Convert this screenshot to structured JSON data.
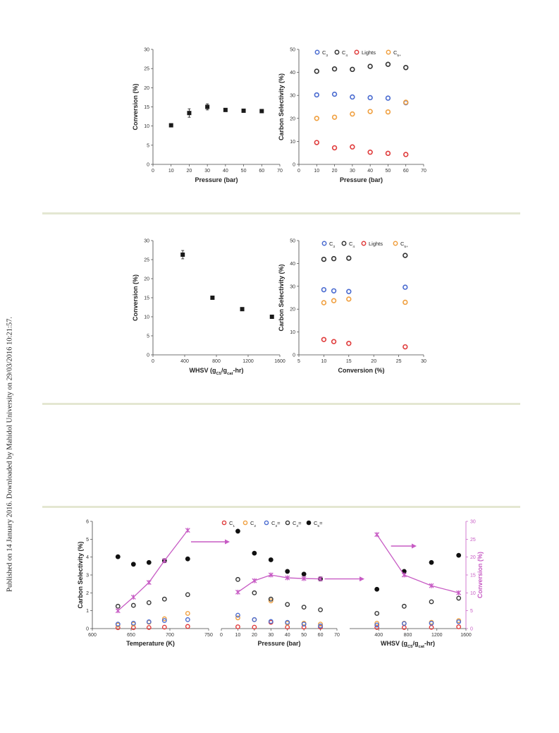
{
  "page": {
    "side_note": "Published on 14 January 2016. Downloaded by Mahidol University on 29/03/2016 10:21:57.",
    "rule_color": "#e4e7d2"
  },
  "colors": {
    "C1": "#e03c3c",
    "C2": "#f0a040",
    "C3": "#4a6bd0",
    "C4": "#333333",
    "Lights": "#e03c3c",
    "C5plus": "#f0a040",
    "C3eq": "#4a6bd0",
    "C4eq": "#333333",
    "C5eq": "#111111",
    "conversion": "#c75bc4",
    "marker": "#1a1a1a"
  },
  "chart_data": [
    {
      "id": "a1",
      "type": "scatter",
      "xlabel": "Pressure (bar)",
      "ylabel": "Conversion (%)",
      "xlim": [
        0,
        70
      ],
      "ylim": [
        0,
        30
      ],
      "xticks": [
        "0",
        "10",
        "20",
        "30",
        "40",
        "50",
        "60",
        "70"
      ],
      "yticks": [
        "0",
        "5",
        "10",
        "15",
        "20",
        "25",
        "30"
      ],
      "series": [
        {
          "x": [
            10,
            20,
            30,
            40,
            50,
            60
          ],
          "y": [
            10.2,
            13.4,
            15.0,
            14.2,
            14.0,
            13.9
          ],
          "err": [
            0,
            1.1,
            0.8,
            0,
            0,
            0
          ]
        }
      ]
    },
    {
      "id": "a2",
      "type": "scatter",
      "xlabel": "Pressure (bar)",
      "ylabel": "Carbon Selectivity (%)",
      "xlim": [
        0,
        70
      ],
      "ylim": [
        0,
        50
      ],
      "xticks": [
        "0",
        "10",
        "20",
        "30",
        "40",
        "50",
        "60",
        "70"
      ],
      "yticks": [
        "0",
        "10",
        "20",
        "30",
        "40",
        "50"
      ],
      "legend": [
        {
          "base": "C",
          "sub": "3",
          "color_key": "C3"
        },
        {
          "base": "C",
          "sub": "4",
          "color_key": "C4"
        },
        {
          "base": "Lights",
          "sub": "",
          "color_key": "Lights"
        },
        {
          "base": "C",
          "sub": "5+",
          "color_key": "C5plus"
        }
      ],
      "series": [
        {
          "key": "C3",
          "x": [
            10,
            20,
            30,
            40,
            50,
            60
          ],
          "y": [
            30.2,
            30.5,
            29.3,
            29.0,
            28.8,
            26.8
          ]
        },
        {
          "key": "C4",
          "x": [
            10,
            20,
            30,
            40,
            50,
            60
          ],
          "y": [
            40.5,
            41.5,
            41.3,
            42.6,
            43.5,
            42.1
          ]
        },
        {
          "key": "Lights",
          "x": [
            10,
            20,
            30,
            40,
            50,
            60
          ],
          "y": [
            9.5,
            7.2,
            7.6,
            5.3,
            4.8,
            4.3
          ]
        },
        {
          "key": "C5plus",
          "x": [
            10,
            20,
            30,
            40,
            50,
            60
          ],
          "y": [
            20.0,
            20.5,
            21.9,
            23.0,
            22.8,
            27.0
          ]
        }
      ]
    },
    {
      "id": "b1",
      "type": "scatter",
      "xlabel_base": "WHSV (g",
      "xlabel_sub1": "C5",
      "xlabel_mid": "/g",
      "xlabel_sub2": "cat",
      "xlabel_end": "-hr)",
      "ylabel": "Conversion (%)",
      "xlim": [
        0,
        1600
      ],
      "ylim": [
        0,
        30
      ],
      "xticks": [
        "0",
        "400",
        "800",
        "1200",
        "1600"
      ],
      "yticks": [
        "0",
        "5",
        "10",
        "15",
        "20",
        "25",
        "30"
      ],
      "series": [
        {
          "x": [
            375,
            750,
            1125,
            1500
          ],
          "y": [
            26.3,
            15.0,
            12.0,
            10.0
          ],
          "err": [
            1.1,
            0,
            0,
            0
          ]
        }
      ]
    },
    {
      "id": "b2",
      "type": "scatter",
      "xlabel": "Conversion (%)",
      "ylabel": "Carbon Selectivity (%)",
      "xlim": [
        5,
        30
      ],
      "ylim": [
        0,
        50
      ],
      "xticks": [
        "5",
        "10",
        "15",
        "20",
        "25",
        "30"
      ],
      "yticks": [
        "0",
        "10",
        "20",
        "30",
        "40",
        "50"
      ],
      "legend": [
        {
          "base": "C",
          "sub": "3",
          "color_key": "C3"
        },
        {
          "base": "C",
          "sub": "4",
          "color_key": "C4"
        },
        {
          "base": "Lights",
          "sub": "",
          "color_key": "Lights"
        },
        {
          "base": "C",
          "sub": "5+",
          "color_key": "C5plus"
        }
      ],
      "series": [
        {
          "key": "C3",
          "x": [
            10,
            12,
            15,
            26.3
          ],
          "y": [
            28.5,
            28.0,
            27.7,
            29.6
          ]
        },
        {
          "key": "C4",
          "x": [
            10,
            12,
            15,
            26.3
          ],
          "y": [
            41.8,
            42.1,
            42.3,
            43.5
          ]
        },
        {
          "key": "Lights",
          "x": [
            10,
            12,
            15,
            26.3
          ],
          "y": [
            6.7,
            5.8,
            5.0,
            3.5
          ]
        },
        {
          "key": "C5plus",
          "x": [
            10,
            12,
            15,
            26.3
          ],
          "y": [
            22.8,
            23.7,
            24.4,
            23.0
          ]
        }
      ]
    },
    {
      "id": "c",
      "type": "scatter",
      "ylabel_left": "Carbon Selectivity (%)",
      "ylabel_right": "Conversion (%)",
      "ylim_left": [
        0,
        6
      ],
      "ylim_right": [
        0,
        30
      ],
      "yticks_left": [
        "0",
        "1",
        "2",
        "3",
        "4",
        "5",
        "6"
      ],
      "yticks_right": [
        "0",
        "5",
        "10",
        "15",
        "20",
        "25",
        "30"
      ],
      "legend": [
        {
          "base": "C",
          "sub": "1",
          "suffix": "",
          "color_key": "C1",
          "filled": false
        },
        {
          "base": "C",
          "sub": "2",
          "suffix": "",
          "color_key": "C2",
          "filled": false
        },
        {
          "base": "C",
          "sub": "3",
          "suffix": "=",
          "color_key": "C3eq",
          "filled": false
        },
        {
          "base": "C",
          "sub": "4",
          "suffix": "=",
          "color_key": "C4eq",
          "filled": false
        },
        {
          "base": "C",
          "sub": "5",
          "suffix": "=",
          "color_key": "C5eq",
          "filled": true
        }
      ],
      "panels": [
        {
          "xlabel": "Temperature (K)",
          "xlim": [
            600,
            750
          ],
          "xticks": [
            "600",
            "650",
            "700",
            "750"
          ],
          "x": [
            633,
            653,
            673,
            693,
            723
          ],
          "series": {
            "C1": [
              0.05,
              0.05,
              0.06,
              0.08,
              0.12
            ],
            "C2": [
              0.2,
              0.25,
              0.35,
              0.55,
              0.85
            ],
            "C3eq": [
              0.25,
              0.3,
              0.38,
              0.45,
              0.5
            ],
            "C4eq": [
              1.25,
              1.3,
              1.45,
              1.65,
              1.9
            ],
            "C5eq": [
              4.02,
              3.6,
              3.7,
              3.8,
              3.9
            ]
          },
          "conversion": [
            5.0,
            8.8,
            12.9,
            19.0,
            27.5
          ]
        },
        {
          "xlabel": "Pressure (bar)",
          "xlim": [
            0,
            70
          ],
          "xticks": [
            "0",
            "10",
            "20",
            "30",
            "40",
            "50",
            "60",
            "70"
          ],
          "x": [
            10,
            20,
            30,
            40,
            50,
            60
          ],
          "series": {
            "C1": [
              0.1,
              0.08,
              0.35,
              0.08,
              0.08,
              0.08
            ],
            "C2": [
              0.6,
              0.5,
              1.55,
              0.3,
              0.3,
              0.25
            ],
            "C3eq": [
              0.75,
              0.5,
              0.4,
              0.35,
              0.25,
              0.15
            ],
            "C4eq": [
              2.75,
              2.0,
              1.65,
              1.35,
              1.2,
              1.05
            ],
            "C5eq": [
              5.45,
              4.22,
              3.85,
              3.2,
              3.05,
              2.78
            ]
          },
          "conversion": [
            10.2,
            13.4,
            15.0,
            14.2,
            14.0,
            13.9
          ]
        },
        {
          "xlabel_base": "WHSV (g",
          "xlabel_sub1": "C5",
          "xlabel_mid": "/g",
          "xlabel_sub2": "cat",
          "xlabel_end": "-hr)",
          "xlim": [
            0,
            1600
          ],
          "xticks": [
            "400",
            "800",
            "1200",
            "1600"
          ],
          "x": [
            375,
            750,
            1125,
            1500
          ],
          "series": {
            "C1": [
              0.06,
              0.06,
              0.07,
              0.1
            ],
            "C2": [
              0.3,
              0.3,
              0.35,
              0.45
            ],
            "C3eq": [
              0.2,
              0.28,
              0.3,
              0.38
            ],
            "C4eq": [
              0.85,
              1.25,
              1.5,
              1.7
            ],
            "C5eq": [
              2.2,
              3.2,
              3.7,
              4.1
            ]
          },
          "conversion": [
            26.3,
            15.0,
            12.0,
            10.0
          ]
        }
      ]
    }
  ]
}
